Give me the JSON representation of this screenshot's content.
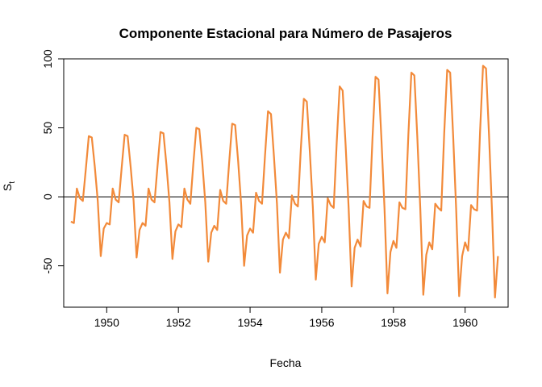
{
  "chart_data": {
    "type": "line",
    "title": "Componente Estacional para Número de Pasajeros",
    "xlabel": "Fecha",
    "ylabel_main": "S",
    "ylabel_sub": "t",
    "xlim": [
      1948.8,
      1961.2
    ],
    "ylim": [
      -80,
      100
    ],
    "x_ticks": [
      1950,
      1952,
      1954,
      1956,
      1958,
      1960
    ],
    "x_tick_labels": [
      "1950",
      "1952",
      "1954",
      "1956",
      "1958",
      "1960"
    ],
    "y_ticks": [
      -50,
      0,
      50,
      100
    ],
    "y_tick_labels": [
      "-50",
      "0",
      "50",
      "100"
    ],
    "hline": 0,
    "line_color": "#f28a3a",
    "series": [
      {
        "x_start": 1949,
        "x_step": 0.083333,
        "values": [
          -18,
          -19,
          6,
          -1,
          -3,
          20,
          44,
          43,
          22,
          -3,
          -43,
          -23,
          -19,
          -20,
          6,
          -2,
          -4,
          21,
          45,
          44,
          22,
          -3,
          -44,
          -24,
          -19,
          -21,
          6,
          -2,
          -4,
          22,
          47,
          46,
          23,
          -4,
          -45,
          -25,
          -20,
          -22,
          6,
          -2,
          -5,
          24,
          50,
          49,
          25,
          -4,
          -47,
          -26,
          -21,
          -24,
          5,
          -3,
          -5,
          25,
          53,
          52,
          26,
          -5,
          -50,
          -28,
          -23,
          -26,
          3,
          -3,
          -5,
          30,
          62,
          60,
          29,
          -5,
          -55,
          -31,
          -26,
          -30,
          1,
          -5,
          -7,
          35,
          71,
          69,
          33,
          -7,
          -60,
          -34,
          -29,
          -33,
          -1,
          -6,
          -8,
          39,
          80,
          77,
          37,
          -8,
          -65,
          -37,
          -31,
          -36,
          -3,
          -7,
          -8,
          43,
          87,
          85,
          41,
          -8,
          -70,
          -40,
          -32,
          -37,
          -4,
          -8,
          -9,
          45,
          90,
          88,
          43,
          -9,
          -71,
          -42,
          -33,
          -38,
          -5,
          -8,
          -10,
          46,
          92,
          90,
          44,
          -9,
          -72,
          -43,
          -33,
          -39,
          -6,
          -9,
          -10,
          47,
          95,
          93,
          45,
          -10,
          -73,
          -43
        ]
      }
    ]
  }
}
